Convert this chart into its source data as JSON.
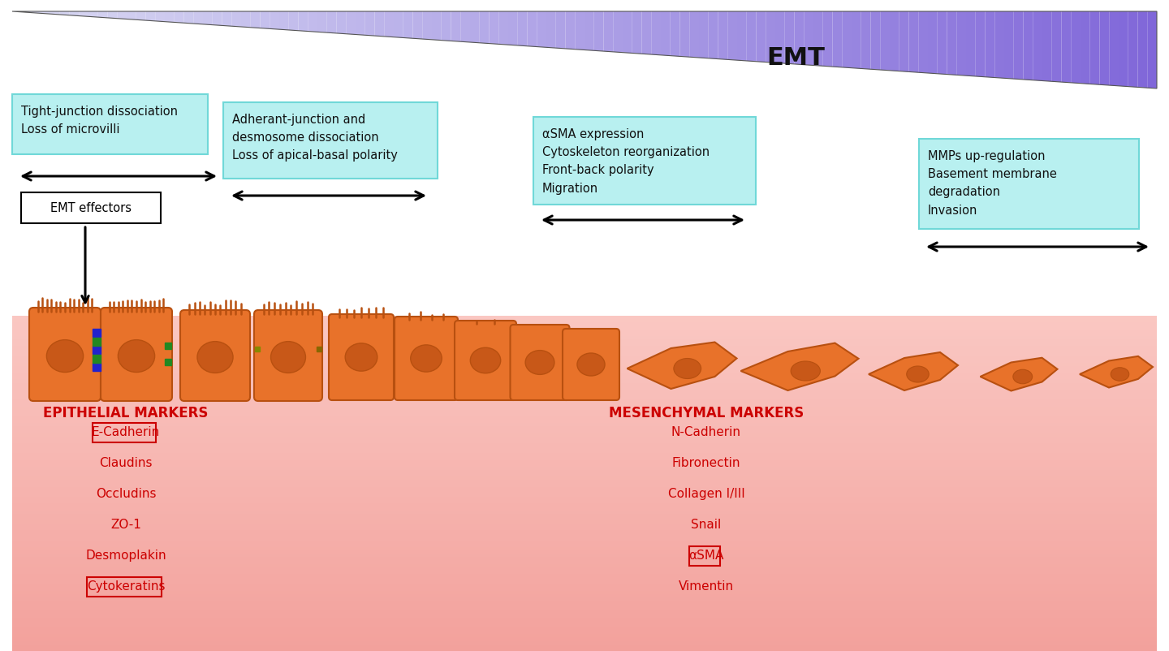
{
  "title": "EMT",
  "bg_color": "#ffffff",
  "cyan_box_color": "#b8f0f0",
  "cyan_box_edge": "#70d8d8",
  "box1_text": "Tight-junction dissociation\nLoss of microvilli",
  "box2_text": "Adherant-junction and\ndesmosome dissociation\nLoss of apical-basal polarity",
  "box3_text": "αSMA expression\nCytoskeleton reorganization\nFront-back polarity\nMigration",
  "box4_text": "MMPs up-regulation\nBasement membrane\ndegradation\nInvasion",
  "emt_effectors": "EMT effectors",
  "epi_title": "EPITHELIAL MARKERS",
  "epi_markers": [
    "E-Cadherin",
    "Claudins",
    "Occludins",
    "ZO-1",
    "Desmoplakin",
    "Cytokeratins"
  ],
  "epi_boxed": [
    0,
    5
  ],
  "mes_title": "MESENCHYMAL MARKERS",
  "mes_markers": [
    "N-Cadherin",
    "Fibronectin",
    "Collagen I/III",
    "Snail",
    "αSMA",
    "Vimentin"
  ],
  "mes_boxed": [
    4
  ],
  "marker_color": "#cc0000",
  "cell_fill": "#e8722a",
  "cell_edge": "#b85010",
  "nucleus_fill": "#c85818",
  "text_color": "#1a1a1a"
}
